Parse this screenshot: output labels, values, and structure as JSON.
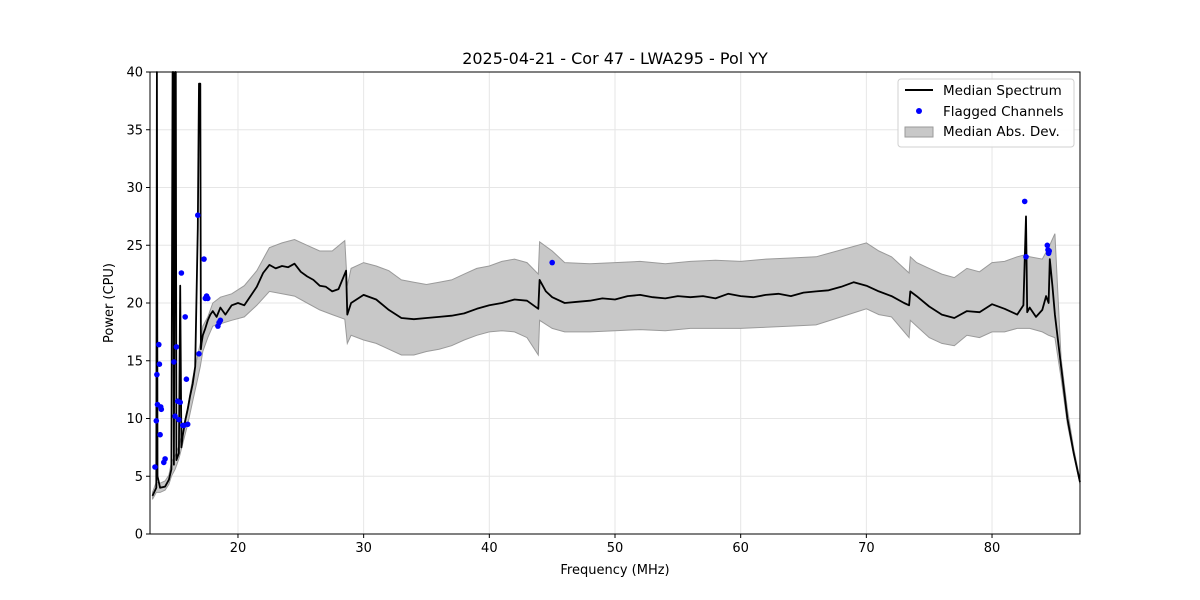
{
  "chart_data": {
    "type": "line",
    "title": "2025-04-21 - Cor 47 - LWA295 - Pol YY",
    "xlabel": "Frequency (MHz)",
    "ylabel": "Power (CPU)",
    "xlim": [
      13,
      87
    ],
    "ylim": [
      0,
      40
    ],
    "xticks": [
      20,
      30,
      40,
      50,
      60,
      70,
      80
    ],
    "yticks": [
      0,
      5,
      10,
      15,
      20,
      25,
      30,
      35,
      40
    ],
    "grid": true,
    "legend_position": "top-right",
    "legend": [
      "Median Spectrum",
      "Flagged Channels",
      "Median Abs. Dev."
    ],
    "colors": {
      "median": "#000000",
      "flagged": "#0000ff",
      "band_fill": "#c8c8c8",
      "band_edge": "#9a9a9a"
    },
    "series": [
      {
        "name": "Median Spectrum",
        "x": [
          13.2,
          13.5,
          13.55,
          13.6,
          13.8,
          14.2,
          14.5,
          14.7,
          14.8,
          14.85,
          14.9,
          15.0,
          15.05,
          15.1,
          15.3,
          15.4,
          15.5,
          15.6,
          15.8,
          16.0,
          16.2,
          16.4,
          16.6,
          16.8,
          16.9,
          17.0,
          17.05,
          17.1,
          17.2,
          17.4,
          17.6,
          17.8,
          18.0,
          18.3,
          18.6,
          19.0,
          19.5,
          20.0,
          20.5,
          21.0,
          21.5,
          22.0,
          22.5,
          23.0,
          23.5,
          24.0,
          24.5,
          25.0,
          25.5,
          26.0,
          26.5,
          27.0,
          27.5,
          28.0,
          28.6,
          28.7,
          29.0,
          30.0,
          31.0,
          32.0,
          33.0,
          34.0,
          35.0,
          36.0,
          37.0,
          38.0,
          39.0,
          40.0,
          41.0,
          42.0,
          43.0,
          43.9,
          44.0,
          44.5,
          45.0,
          46.0,
          47.0,
          48.0,
          49.0,
          50.0,
          51.0,
          52.0,
          53.0,
          54.0,
          55.0,
          56.0,
          57.0,
          58.0,
          59.0,
          60.0,
          61.0,
          62.0,
          63.0,
          64.0,
          65.0,
          66.0,
          67.0,
          68.0,
          69.0,
          70.0,
          71.0,
          72.0,
          73.0,
          73.4,
          73.5,
          74.0,
          75.0,
          76.0,
          77.0,
          78.0,
          79.0,
          80.0,
          81.0,
          82.0,
          82.5,
          82.7,
          82.8,
          83.0,
          83.5,
          84.0,
          84.3,
          84.5,
          84.6,
          84.8,
          85.0,
          85.5,
          86.0,
          86.5,
          87.0
        ],
        "y": [
          3.3,
          4.0,
          40.0,
          5.0,
          4.0,
          4.1,
          4.7,
          5.6,
          40.0,
          40.0,
          6.0,
          40.0,
          40.0,
          6.4,
          7.0,
          21.5,
          7.5,
          8.5,
          9.8,
          10.8,
          12.0,
          13.0,
          14.5,
          26.5,
          39.0,
          39.0,
          16.0,
          16.5,
          17.2,
          17.8,
          18.5,
          19.0,
          19.3,
          18.8,
          19.6,
          19.0,
          19.8,
          20.0,
          19.8,
          20.6,
          21.4,
          22.6,
          23.3,
          23.0,
          23.2,
          23.1,
          23.4,
          22.7,
          22.3,
          22.0,
          21.5,
          21.4,
          21.0,
          21.2,
          22.8,
          19.0,
          20.0,
          20.7,
          20.3,
          19.4,
          18.7,
          18.6,
          18.7,
          18.8,
          18.9,
          19.1,
          19.5,
          19.8,
          20.0,
          20.3,
          20.2,
          19.5,
          22.0,
          21.0,
          20.5,
          20.0,
          20.1,
          20.2,
          20.4,
          20.3,
          20.6,
          20.7,
          20.5,
          20.4,
          20.6,
          20.5,
          20.6,
          20.4,
          20.8,
          20.6,
          20.5,
          20.7,
          20.8,
          20.6,
          20.9,
          21.0,
          21.1,
          21.4,
          21.8,
          21.5,
          21.0,
          20.6,
          20.0,
          19.8,
          21.0,
          20.6,
          19.7,
          19.0,
          18.7,
          19.3,
          19.2,
          19.9,
          19.5,
          19.0,
          19.8,
          27.5,
          19.2,
          19.6,
          18.8,
          19.4,
          20.6,
          20.0,
          23.8,
          21.5,
          19.0,
          14.5,
          10.0,
          7.0,
          4.5
        ]
      },
      {
        "name": "Flagged Channels",
        "x": [
          13.4,
          13.5,
          13.55,
          13.6,
          13.7,
          13.75,
          13.8,
          13.85,
          13.9,
          14.1,
          14.2,
          14.9,
          15.0,
          15.1,
          15.2,
          15.3,
          15.4,
          15.5,
          15.6,
          15.7,
          15.8,
          15.9,
          16.0,
          16.8,
          16.9,
          17.3,
          17.4,
          17.5,
          17.6,
          18.4,
          18.5,
          18.6,
          45.0,
          82.6,
          82.7,
          84.4,
          84.45,
          84.5,
          84.55
        ],
        "y": [
          5.8,
          9.8,
          13.8,
          11.2,
          16.4,
          14.7,
          8.6,
          11.0,
          10.8,
          6.2,
          6.5,
          14.9,
          10.2,
          16.2,
          11.5,
          9.9,
          11.4,
          22.6,
          9.4,
          9.4,
          18.8,
          13.4,
          9.5,
          27.6,
          15.6,
          23.8,
          20.4,
          20.6,
          20.4,
          18.0,
          18.3,
          18.5,
          23.5,
          28.8,
          24.0,
          25.0,
          24.6,
          24.3,
          24.5
        ]
      },
      {
        "name": "Median Abs. Dev.",
        "x": [
          13.2,
          13.5,
          13.8,
          14.2,
          14.5,
          14.7,
          15.0,
          15.3,
          15.6,
          16.0,
          16.4,
          16.8,
          17.0,
          17.2,
          17.6,
          18.0,
          18.6,
          19.5,
          20.5,
          21.5,
          22.5,
          23.5,
          24.5,
          25.5,
          26.5,
          27.5,
          28.5,
          28.7,
          29.0,
          30.0,
          31.0,
          32.0,
          33.0,
          34.0,
          35.0,
          36.0,
          37.0,
          38.0,
          39.0,
          40.0,
          41.0,
          42.0,
          43.0,
          43.9,
          44.0,
          45.0,
          46.0,
          48.0,
          50.0,
          52.0,
          54.0,
          56.0,
          58.0,
          60.0,
          62.0,
          64.0,
          66.0,
          68.0,
          70.0,
          71.0,
          72.0,
          73.4,
          73.5,
          74.0,
          75.0,
          76.0,
          77.0,
          78.0,
          79.0,
          80.0,
          81.0,
          82.0,
          82.7,
          83.0,
          84.0,
          84.5,
          85.0,
          85.5,
          86.0,
          86.5,
          87.0
        ],
        "low": [
          3.0,
          3.6,
          3.6,
          3.8,
          4.3,
          5.0,
          5.6,
          6.5,
          7.8,
          9.5,
          11.5,
          13.5,
          14.5,
          15.8,
          17.0,
          18.0,
          18.2,
          18.5,
          18.8,
          19.8,
          21.0,
          20.8,
          20.6,
          20.0,
          19.4,
          19.0,
          18.6,
          16.5,
          17.2,
          16.8,
          16.5,
          16.0,
          15.5,
          15.5,
          15.8,
          16.0,
          16.3,
          16.8,
          17.2,
          17.5,
          17.6,
          17.5,
          17.0,
          15.5,
          18.5,
          17.8,
          17.5,
          17.5,
          17.6,
          17.7,
          17.6,
          17.8,
          17.8,
          17.8,
          17.9,
          18.0,
          18.1,
          18.8,
          19.5,
          19.0,
          18.8,
          17.0,
          18.5,
          18.0,
          17.0,
          16.5,
          16.3,
          17.2,
          17.0,
          17.5,
          17.5,
          17.8,
          17.8,
          17.8,
          17.5,
          17.2,
          17.0,
          13.5,
          9.5,
          6.8,
          4.3
        ],
        "high": [
          3.6,
          4.5,
          4.4,
          4.6,
          5.1,
          6.2,
          6.8,
          7.6,
          9.0,
          11.0,
          13.5,
          15.5,
          16.5,
          18.0,
          18.8,
          20.0,
          20.5,
          20.8,
          21.5,
          22.8,
          24.8,
          25.2,
          25.5,
          25.0,
          24.5,
          24.5,
          25.4,
          21.5,
          23.0,
          23.5,
          23.2,
          22.8,
          22.0,
          21.8,
          21.6,
          21.8,
          22.0,
          22.5,
          23.0,
          23.2,
          23.6,
          23.8,
          23.5,
          22.5,
          25.3,
          24.5,
          23.5,
          23.4,
          23.5,
          23.6,
          23.4,
          23.6,
          23.7,
          23.6,
          23.8,
          23.9,
          24.0,
          24.6,
          25.2,
          24.5,
          24.0,
          22.6,
          24.0,
          23.5,
          23.0,
          22.5,
          22.2,
          23.0,
          22.7,
          23.5,
          23.6,
          24.0,
          24.2,
          24.0,
          23.8,
          24.8,
          26.0,
          15.2,
          10.8,
          7.4,
          4.7
        ]
      }
    ]
  }
}
